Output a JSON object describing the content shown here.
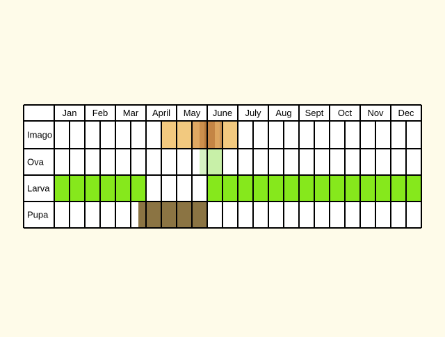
{
  "chart_data": {
    "type": "table",
    "title": "",
    "months": [
      "Jan",
      "Feb",
      "Mar",
      "April",
      "May",
      "June",
      "July",
      "Aug",
      "Sept",
      "Oct",
      "Nov",
      "Dec"
    ],
    "subdivisions_per_month": 2,
    "rows": [
      {
        "label": "Imago",
        "periods": [
          {
            "start": 3.5,
            "end": 4.5,
            "color": "#f2c97f"
          },
          {
            "start": 4.5,
            "end": 4.75,
            "color": "#dfa862"
          },
          {
            "start": 4.75,
            "end": 4.9,
            "color": "#cc8f4c"
          },
          {
            "start": 4.9,
            "end": 5.0,
            "color": "#b97a3b"
          },
          {
            "start": 5.0,
            "end": 5.25,
            "color": "#c48545"
          },
          {
            "start": 5.25,
            "end": 5.4,
            "color": "#dda55f"
          },
          {
            "start": 5.4,
            "end": 5.5,
            "color": "#cc9350"
          },
          {
            "start": 5.5,
            "end": 6.0,
            "color": "#f2c97f"
          }
        ]
      },
      {
        "label": "Ova",
        "periods": [
          {
            "start": 4.75,
            "end": 5.0,
            "color": "#d8f2c4"
          },
          {
            "start": 5.0,
            "end": 5.5,
            "color": "#c8f0a8"
          }
        ]
      },
      {
        "label": "Larva",
        "periods": [
          {
            "start": 0.0,
            "end": 3.0,
            "color": "#86e81c"
          },
          {
            "start": 5.0,
            "end": 12.0,
            "color": "#86e81c"
          }
        ]
      },
      {
        "label": "Pupa",
        "periods": [
          {
            "start": 2.75,
            "end": 5.0,
            "color": "#8b7443"
          }
        ]
      }
    ]
  }
}
